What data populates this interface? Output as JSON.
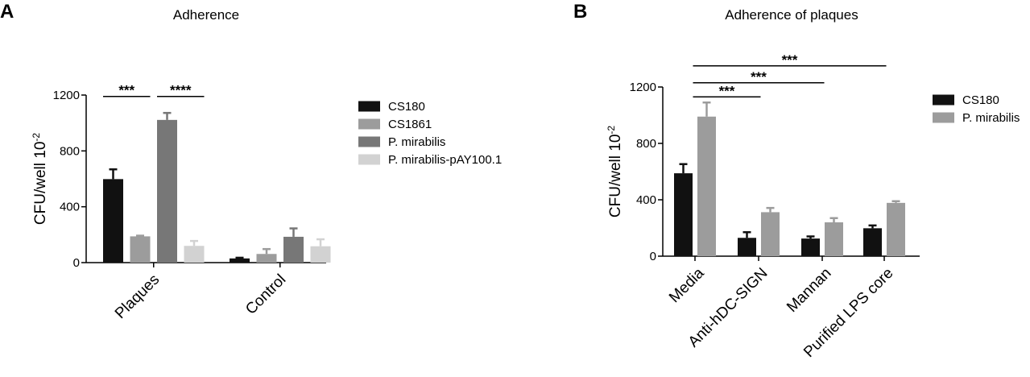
{
  "chart_data": [
    {
      "panel": "A",
      "type": "bar",
      "title": "Adherence",
      "ylabel": "CFU/well 10",
      "ylabel_sup": "-2",
      "xlabel": "",
      "ylim": [
        0,
        1200
      ],
      "yticks": [
        "0",
        "400",
        "800",
        "1200"
      ],
      "categories": [
        "Plaques",
        "Control"
      ],
      "series": [
        {
          "name": "CS180",
          "color": "#111111",
          "values": [
            598,
            30
          ],
          "errors": [
            70,
            5
          ]
        },
        {
          "name": "CS1861",
          "color": "#9c9c9c",
          "values": [
            188,
            62
          ],
          "errors": [
            5,
            35
          ]
        },
        {
          "name": "P. mirabilis",
          "color": "#777777",
          "values": [
            1022,
            185
          ],
          "errors": [
            50,
            60
          ]
        },
        {
          "name": "P. mirabilis-pAY100.1",
          "color": "#d2d2d2",
          "values": [
            120,
            117
          ],
          "errors": [
            35,
            50
          ]
        }
      ],
      "significance": [
        {
          "label": "***",
          "category": 0,
          "from_series": 0,
          "to_series": 1,
          "y": 1190
        },
        {
          "label": "****",
          "category": 0,
          "from_series": 2,
          "to_series": 3,
          "y": 1190
        }
      ],
      "legend_position": "right"
    },
    {
      "panel": "B",
      "type": "bar",
      "title": "Adherence of plaques",
      "ylabel": "CFU/well 10",
      "ylabel_sup": "-2",
      "xlabel": "",
      "ylim": [
        0,
        1200
      ],
      "yticks": [
        "0",
        "400",
        "800",
        "1200"
      ],
      "categories": [
        "Media",
        "Anti-hDC-SIGN",
        "Mannan",
        "Purified LPS core"
      ],
      "series": [
        {
          "name": "CS180",
          "color": "#111111",
          "values": [
            588,
            130,
            125,
            198
          ],
          "errors": [
            65,
            40,
            15,
            20
          ]
        },
        {
          "name": "P. mirabilis",
          "color": "#9c9c9c",
          "values": [
            990,
            312,
            240,
            378
          ],
          "errors": [
            100,
            30,
            30,
            12
          ]
        }
      ],
      "significance": [
        {
          "label": "***",
          "from_category": 0,
          "to_category": 1,
          "y": 1130
        },
        {
          "label": "***",
          "from_category": 0,
          "to_category": 2,
          "y": 1230
        },
        {
          "label": "***",
          "from_category": 0,
          "to_category": 3,
          "y": 1350
        }
      ],
      "legend_position": "right"
    }
  ]
}
